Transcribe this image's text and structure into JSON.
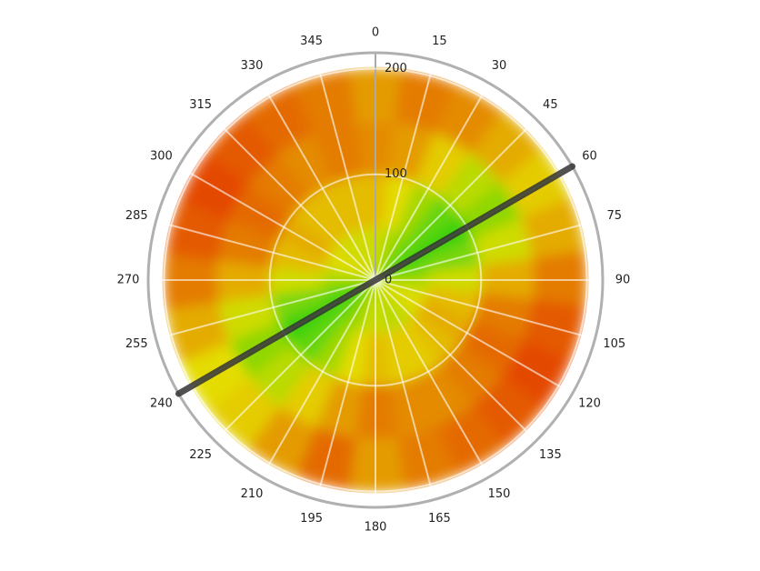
{
  "chart_data": {
    "type": "polar-heatmap",
    "thetaticks": [
      0,
      15,
      30,
      45,
      60,
      75,
      90,
      105,
      120,
      135,
      150,
      165,
      180,
      195,
      210,
      225,
      240,
      255,
      270,
      285,
      300,
      315,
      330,
      345
    ],
    "rlim": [
      0,
      215
    ],
    "rticks": [
      0,
      100,
      200
    ],
    "grid": true,
    "r_bins": [
      0,
      50,
      100,
      150,
      200
    ],
    "z": [
      [
        45,
        40,
        30,
        20,
        10,
        20,
        35,
        45,
        50,
        45,
        40,
        40,
        45,
        40,
        30,
        20,
        10,
        20,
        35,
        45,
        50,
        45,
        45,
        45
      ],
      [
        60,
        50,
        35,
        20,
        10,
        25,
        45,
        60,
        65,
        60,
        55,
        55,
        60,
        50,
        35,
        20,
        10,
        25,
        45,
        60,
        65,
        60,
        60,
        60
      ],
      [
        75,
        70,
        55,
        40,
        30,
        45,
        65,
        80,
        85,
        80,
        75,
        75,
        80,
        70,
        55,
        40,
        30,
        45,
        65,
        80,
        85,
        80,
        75,
        80
      ],
      [
        70,
        80,
        75,
        65,
        55,
        65,
        80,
        90,
        95,
        90,
        85,
        80,
        70,
        85,
        70,
        55,
        50,
        65,
        80,
        90,
        95,
        90,
        85,
        80
      ]
    ],
    "zlim": [
      0,
      100
    ],
    "colors": [
      "#10d010",
      "#e4dc00",
      "#e43a00"
    ],
    "line_angle": 60,
    "line_color": "#333333"
  }
}
